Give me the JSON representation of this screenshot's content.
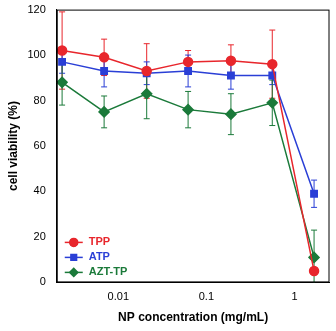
{
  "chart_data": {
    "type": "line",
    "x_label": "NP concentration (mg/mL)",
    "y_label": "cell viability (%)",
    "x": [
      0.0023,
      0.0069,
      0.021,
      0.062,
      0.19,
      0.56,
      1.67
    ],
    "series": [
      {
        "name": "TPP",
        "color": "#e8262c",
        "marker": "circle",
        "values": [
          102,
          99,
          93,
          97,
          97.5,
          96,
          5
        ],
        "errors": [
          17,
          8,
          12,
          5,
          7,
          15,
          1
        ]
      },
      {
        "name": "ATP",
        "color": "#2a3fd6",
        "marker": "square",
        "values": [
          97,
          93,
          92,
          93,
          91,
          91,
          39
        ],
        "errors": [
          5,
          7,
          5,
          7,
          6,
          4,
          6
        ]
      },
      {
        "name": "AZT-TP",
        "color": "#1b7a3a",
        "marker": "diamond",
        "values": [
          88,
          75,
          83,
          76,
          74,
          79,
          11
        ],
        "errors": [
          10,
          7,
          11,
          8,
          9,
          10,
          12
        ]
      }
    ],
    "log": "x",
    "xlim": [
      0.002,
      2.5
    ],
    "xticks": [
      0.01,
      0.1,
      1
    ],
    "ylim": [
      0,
      120
    ],
    "yticks": [
      0,
      20,
      40,
      60,
      80,
      100,
      120
    ],
    "grid": false,
    "legend": "lower left"
  }
}
